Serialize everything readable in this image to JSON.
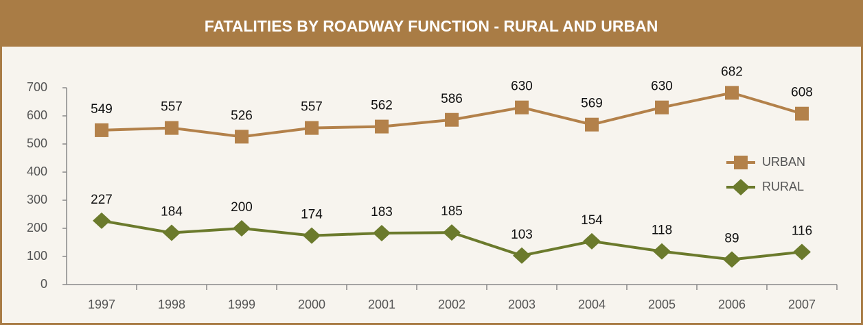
{
  "chart_data": {
    "type": "line",
    "title": "FATALITIES BY ROADWAY FUNCTION - RURAL AND URBAN",
    "categories": [
      "1997",
      "1998",
      "1999",
      "2000",
      "2001",
      "2002",
      "2003",
      "2004",
      "2005",
      "2006",
      "2007"
    ],
    "series": [
      {
        "name": "URBAN",
        "color": "#b3814a",
        "marker": "square",
        "values": [
          549,
          557,
          526,
          557,
          562,
          586,
          630,
          569,
          630,
          682,
          608
        ]
      },
      {
        "name": "RURAL",
        "color": "#6b7a2c",
        "marker": "diamond",
        "values": [
          227,
          184,
          200,
          174,
          183,
          185,
          103,
          154,
          118,
          89,
          116
        ]
      }
    ],
    "ylim": [
      0,
      700
    ],
    "yticks": [
      0,
      100,
      200,
      300,
      400,
      500,
      600,
      700
    ],
    "grid": false,
    "legend": "right"
  }
}
